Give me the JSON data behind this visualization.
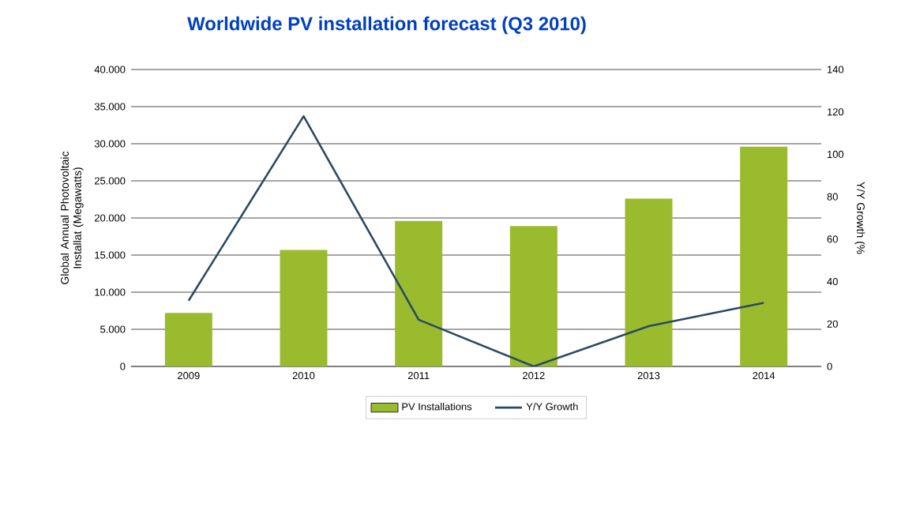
{
  "chart_data": {
    "type": "bar",
    "title": "Worldwide PV installation forecast (Q3 2010)",
    "categories": [
      "2009",
      "2010",
      "2011",
      "2012",
      "2013",
      "2014"
    ],
    "series": [
      {
        "name": "PV Installations",
        "color": "#9bbb2f",
        "values": [
          7200,
          15700,
          19600,
          18900,
          22600,
          29600
        ]
      },
      {
        "name": "Y/Y Growth",
        "type": "line",
        "axis": "y2",
        "color": "#2a4a63",
        "values": [
          31,
          118,
          22,
          0,
          19,
          30
        ]
      }
    ],
    "ylabel": "Global Annual Photovoltaic Installat (Megawatts)",
    "y2label": "Y/Y Growth (%",
    "ylim": [
      0,
      40000
    ],
    "yticks": [
      0,
      {
        "value": 5000,
        "label": "5.000"
      },
      {
        "value": 10000,
        "label": "10.000"
      },
      {
        "value": 15000,
        "label": "15.000"
      },
      {
        "value": 20000,
        "label": "20.000"
      },
      {
        "value": 25000,
        "label": "25.000"
      },
      {
        "value": 30000,
        "label": "30.000"
      },
      {
        "value": 35000,
        "label": "35.000"
      },
      {
        "value": 40000,
        "label": "40.000"
      }
    ],
    "y2lim": [
      0,
      140
    ],
    "y2ticks": [
      0,
      20,
      40,
      60,
      80,
      100,
      120,
      140
    ],
    "grid": "y",
    "legend": "bottom"
  }
}
